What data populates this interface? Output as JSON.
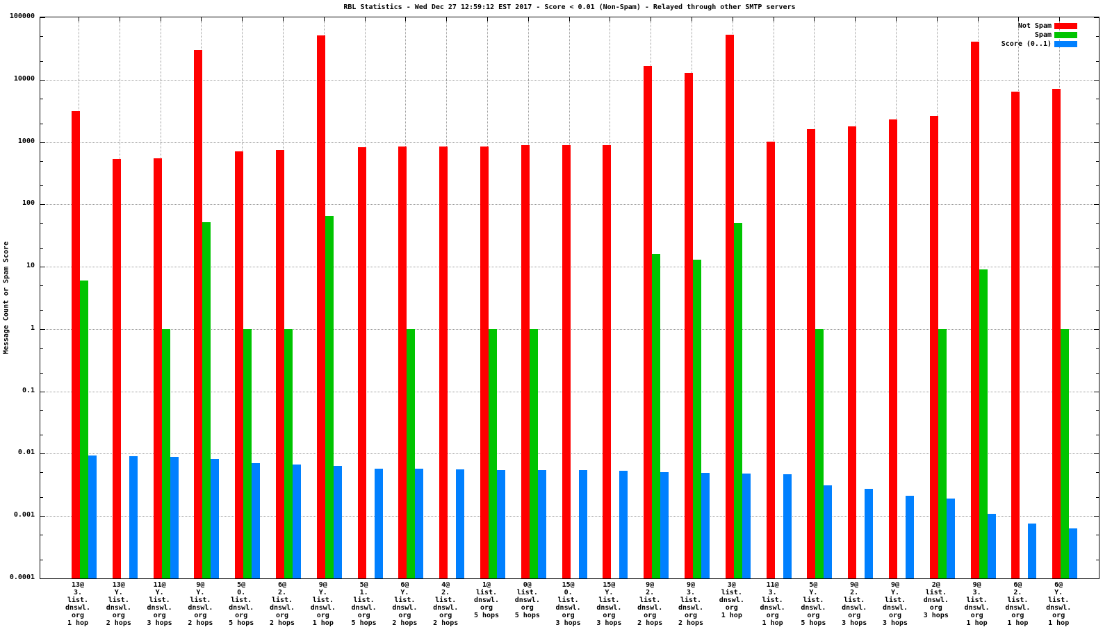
{
  "chart_data": {
    "type": "bar",
    "scale": "log-y",
    "title": "RBL Statistics - Wed Dec 27 12:59:12 EST 2017 - Score < 0.01 (Non-Spam) - Relayed through other SMTP servers",
    "ylabel": "Message Count or Spam Score",
    "ylim": [
      0.0001,
      100000
    ],
    "y_ticks": [
      "100000",
      "10000",
      "1000",
      "100",
      "10",
      "1",
      "0.1",
      "0.01",
      "0.001",
      "0.0001"
    ],
    "grid": "dotted gray, both axes, log decades",
    "legend_position": "top-right-inside",
    "series": [
      {
        "name": "Not Spam",
        "color": "#ff0000",
        "key": "not_spam"
      },
      {
        "name": "Spam",
        "color": "#00c400",
        "key": "spam"
      },
      {
        "name": "Score (0..1)",
        "color": "#0080ff",
        "key": "score"
      }
    ],
    "groups": [
      {
        "label_lines": [
          "13@",
          "3.",
          "list.",
          "dnswl.",
          "org",
          "1 hop"
        ],
        "not_spam": 3100,
        "spam": 6,
        "score": 0.0093
      },
      {
        "label_lines": [
          "13@",
          "Y.",
          "list.",
          "dnswl.",
          "org",
          "2 hops"
        ],
        "not_spam": 540,
        "spam": null,
        "score": 0.0092
      },
      {
        "label_lines": [
          "11@",
          "Y.",
          "list.",
          "dnswl.",
          "org",
          "3 hops"
        ],
        "not_spam": 550,
        "spam": 1,
        "score": 0.0088
      },
      {
        "label_lines": [
          "9@",
          "Y.",
          "list.",
          "dnswl.",
          "org",
          "2 hops"
        ],
        "not_spam": 30000,
        "spam": 52,
        "score": 0.0083
      },
      {
        "label_lines": [
          "5@",
          "0.",
          "list.",
          "dnswl.",
          "org",
          "5 hops"
        ],
        "not_spam": 700,
        "spam": 1,
        "score": 0.007
      },
      {
        "label_lines": [
          "6@",
          "2.",
          "list.",
          "dnswl.",
          "org",
          "2 hops"
        ],
        "not_spam": 740,
        "spam": 1,
        "score": 0.0067
      },
      {
        "label_lines": [
          "9@",
          "Y.",
          "list.",
          "dnswl.",
          "org",
          "1 hop"
        ],
        "not_spam": 51000,
        "spam": 65,
        "score": 0.0063
      },
      {
        "label_lines": [
          "5@",
          "1.",
          "list.",
          "dnswl.",
          "org",
          "5 hops"
        ],
        "not_spam": 830,
        "spam": null,
        "score": 0.0058
      },
      {
        "label_lines": [
          "6@",
          "Y.",
          "list.",
          "dnswl.",
          "org",
          "2 hops"
        ],
        "not_spam": 840,
        "spam": 1,
        "score": 0.0057
      },
      {
        "label_lines": [
          "4@",
          "2.",
          "list.",
          "dnswl.",
          "org",
          "2 hops"
        ],
        "not_spam": 850,
        "spam": null,
        "score": 0.0056
      },
      {
        "label_lines": [
          "1@",
          "list.",
          "dnswl.",
          "org",
          "5 hops"
        ],
        "not_spam": 850,
        "spam": 1,
        "score": 0.0055
      },
      {
        "label_lines": [
          "0@",
          "list.",
          "dnswl.",
          "org",
          "5 hops"
        ],
        "not_spam": 890,
        "spam": 1,
        "score": 0.0054
      },
      {
        "label_lines": [
          "15@",
          "0.",
          "list.",
          "dnswl.",
          "org",
          "3 hops"
        ],
        "not_spam": 890,
        "spam": null,
        "score": 0.0054
      },
      {
        "label_lines": [
          "15@",
          "Y.",
          "list.",
          "dnswl.",
          "org",
          "3 hops"
        ],
        "not_spam": 900,
        "spam": null,
        "score": 0.0053
      },
      {
        "label_lines": [
          "9@",
          "2.",
          "list.",
          "dnswl.",
          "org",
          "2 hops"
        ],
        "not_spam": 16500,
        "spam": 16,
        "score": 0.005
      },
      {
        "label_lines": [
          "9@",
          "3.",
          "list.",
          "dnswl.",
          "org",
          "2 hops"
        ],
        "not_spam": 13000,
        "spam": 13,
        "score": 0.0049
      },
      {
        "label_lines": [
          "3@",
          "list.",
          "dnswl.",
          "org",
          "1 hop"
        ],
        "not_spam": 52000,
        "spam": 50,
        "score": 0.0048
      },
      {
        "label_lines": [
          "11@",
          "3.",
          "list.",
          "dnswl.",
          "org",
          "1 hop"
        ],
        "not_spam": 1020,
        "spam": null,
        "score": 0.0047
      },
      {
        "label_lines": [
          "5@",
          "Y.",
          "list.",
          "dnswl.",
          "org",
          "5 hops"
        ],
        "not_spam": 1600,
        "spam": 1,
        "score": 0.0031
      },
      {
        "label_lines": [
          "9@",
          "2.",
          "list.",
          "dnswl.",
          "org",
          "3 hops"
        ],
        "not_spam": 1800,
        "spam": null,
        "score": 0.0027
      },
      {
        "label_lines": [
          "9@",
          "Y.",
          "list.",
          "dnswl.",
          "org",
          "3 hops"
        ],
        "not_spam": 2300,
        "spam": null,
        "score": 0.0021
      },
      {
        "label_lines": [
          "2@",
          "list.",
          "dnswl.",
          "org",
          "3 hops"
        ],
        "not_spam": 2600,
        "spam": 1,
        "score": 0.0019
      },
      {
        "label_lines": [
          "9@",
          "3.",
          "list.",
          "dnswl.",
          "org",
          "1 hop"
        ],
        "not_spam": 41000,
        "spam": 9,
        "score": 0.0011
      },
      {
        "label_lines": [
          "6@",
          "2.",
          "list.",
          "dnswl.",
          "org",
          "1 hop"
        ],
        "not_spam": 6500,
        "spam": null,
        "score": 0.00075
      },
      {
        "label_lines": [
          "6@",
          "Y.",
          "list.",
          "dnswl.",
          "org",
          "1 hop"
        ],
        "not_spam": 7200,
        "spam": 1,
        "score": 0.00064
      }
    ]
  }
}
